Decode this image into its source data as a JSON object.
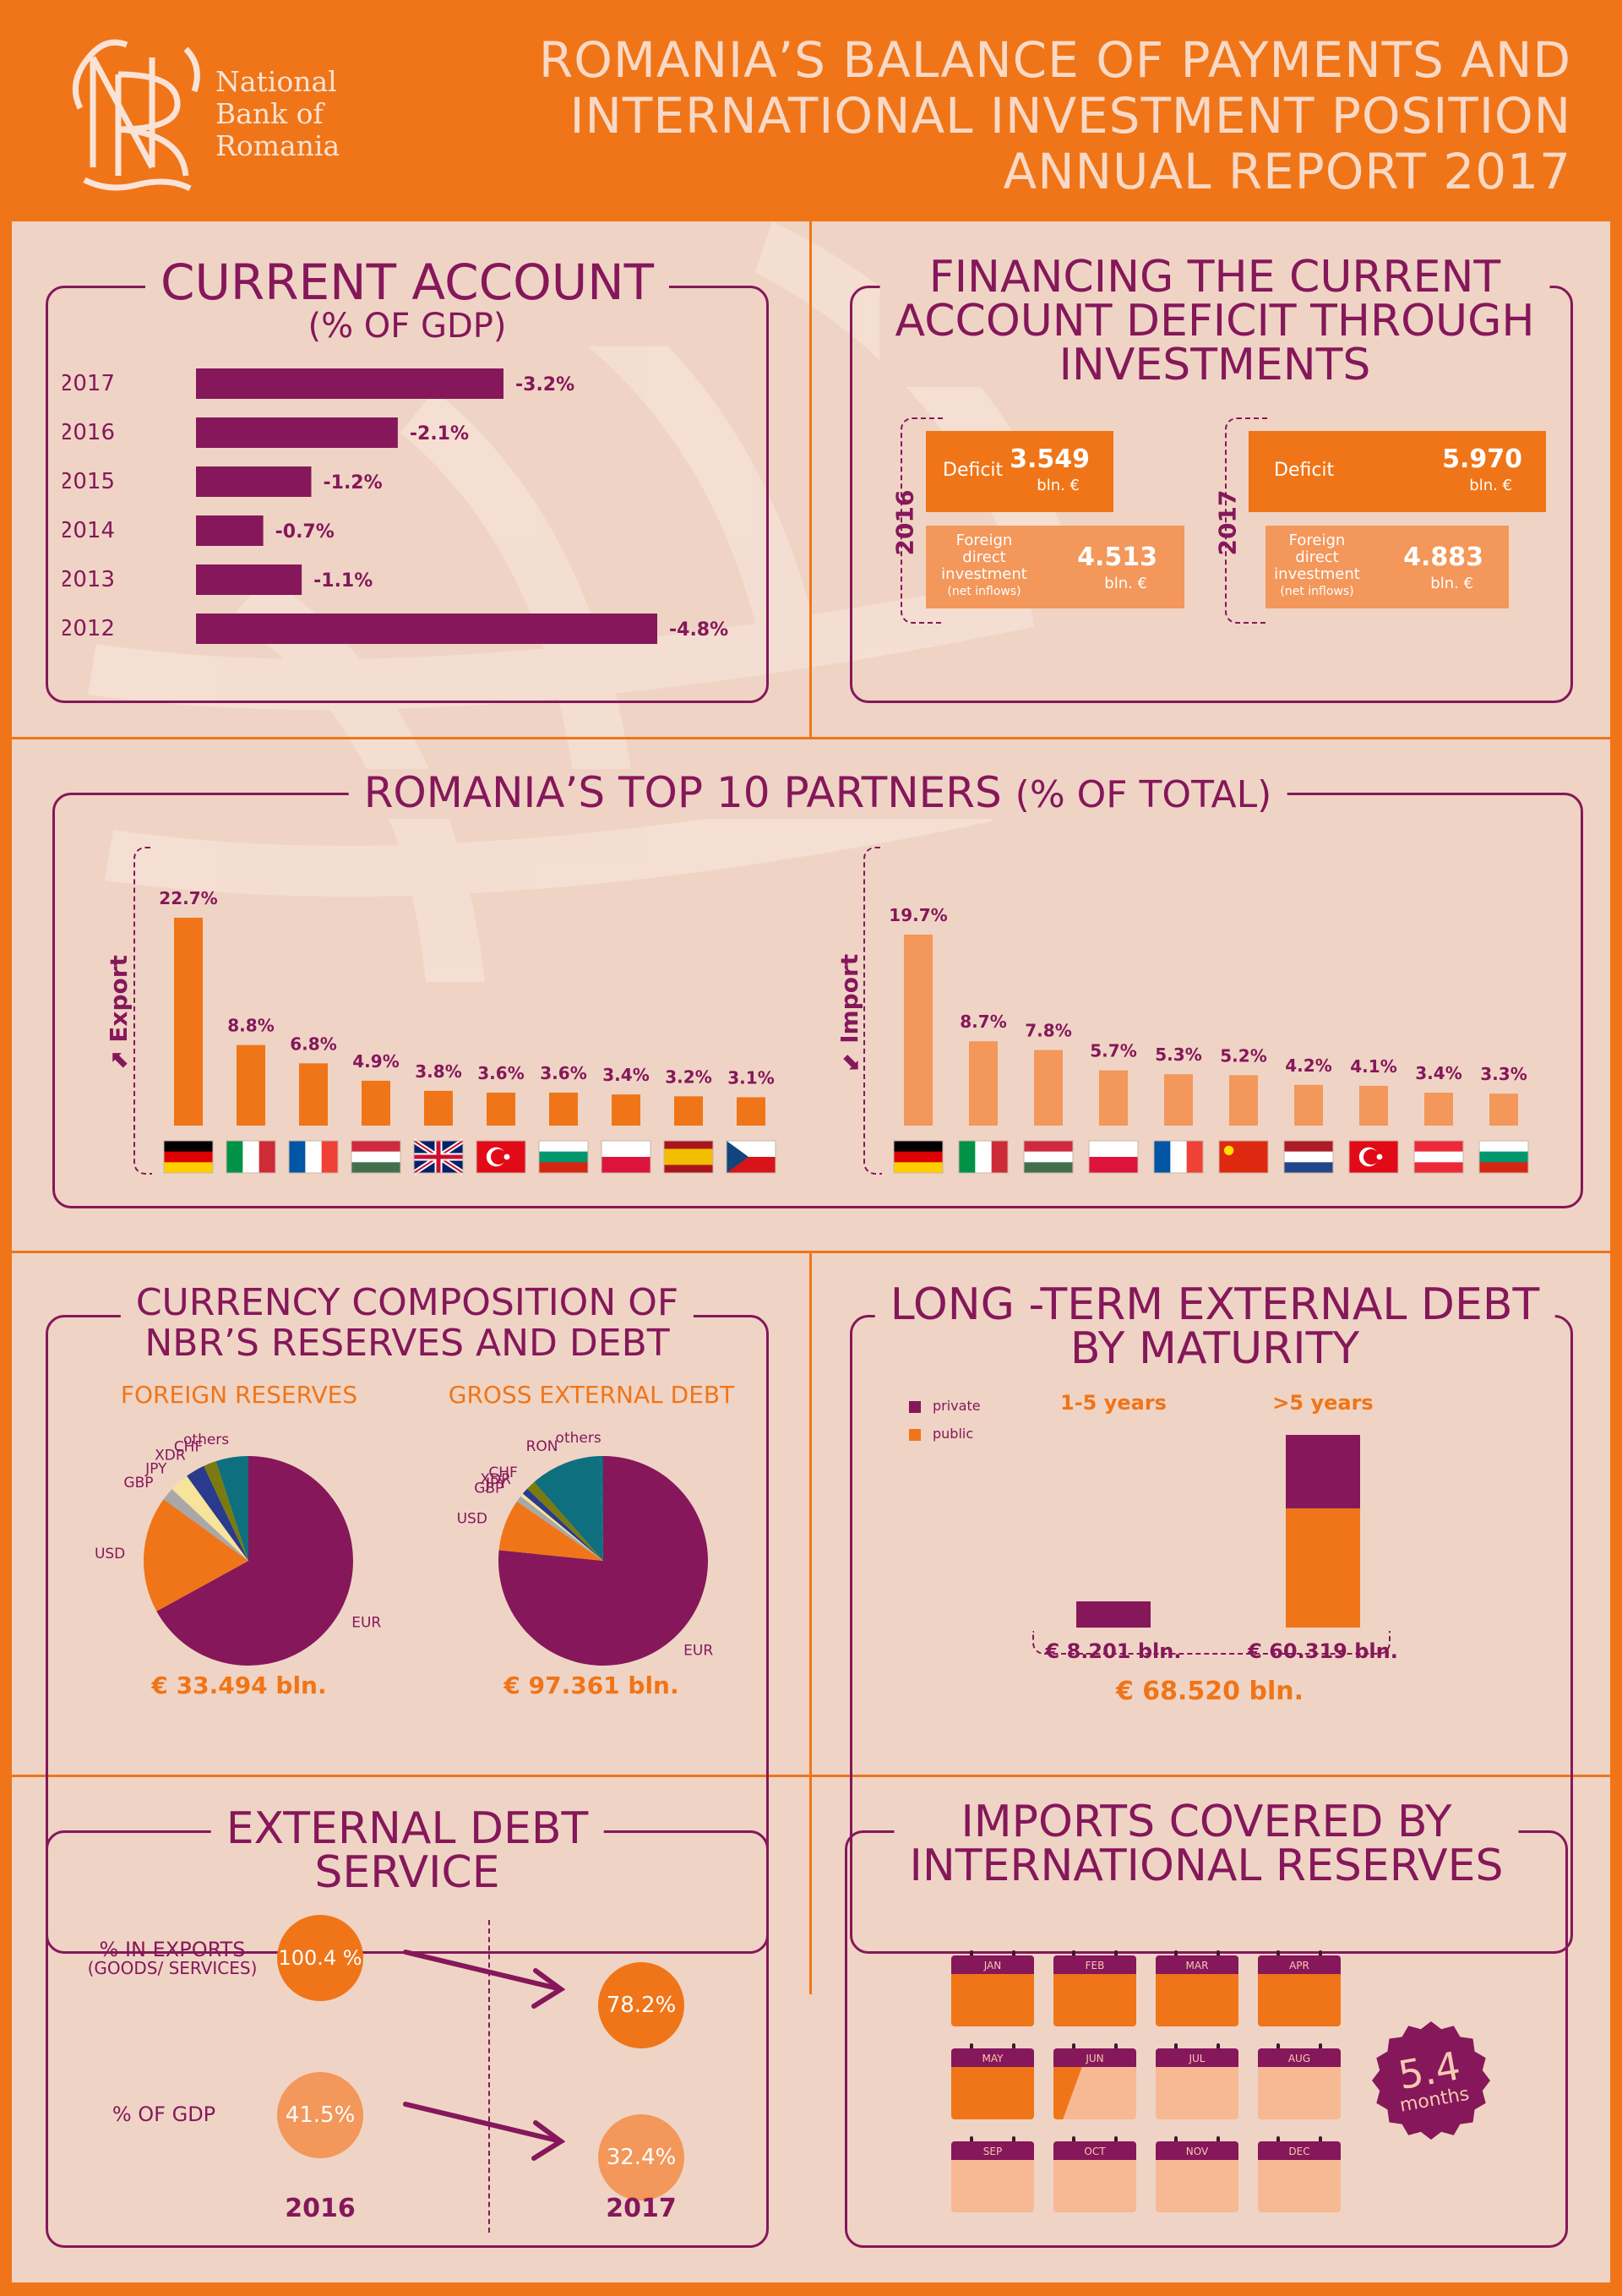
{
  "header": {
    "logo_monogram": "NBR",
    "logo_lines": [
      "National",
      "Bank of",
      "Romania"
    ],
    "title_lines": [
      "ROMANIA’S BALANCE OF PAYMENTS AND",
      "INTERNATIONAL INVESTMENT POSITION",
      "ANNUAL REPORT 2017"
    ]
  },
  "colors": {
    "purple": "#86175A",
    "orange": "#F07518",
    "light_orange": "#F3975A",
    "bg": "#EFD4C5",
    "teal": "#0E6F7E",
    "navy": "#2A3A8C",
    "olive": "#7A7A10",
    "yellow": "#F7E39A",
    "grey": "#A8A8A8"
  },
  "current_account": {
    "title": "CURRENT ACCOUNT",
    "subtitle": "(% OF GDP)",
    "chart_data": {
      "type": "bar",
      "orientation": "horizontal",
      "categories": [
        "2017",
        "2016",
        "2015",
        "2014",
        "2013",
        "2012"
      ],
      "values": [
        -3.2,
        -2.1,
        -1.2,
        -0.7,
        -1.1,
        -4.8
      ],
      "labels": [
        "-3.2%",
        "-2.1%",
        "-1.2%",
        "-0.7%",
        "-1.1%",
        "-4.8%"
      ]
    }
  },
  "financing": {
    "title_lines": [
      "FINANCING THE CURRENT",
      "ACCOUNT DEFICIT THROUGH",
      "INVESTMENTS"
    ],
    "years": [
      {
        "year": "2016",
        "deficit_label": "Deficit",
        "deficit_value": "3.549",
        "deficit_unit": "bln. €",
        "fdi_label_lines": [
          "Foreign",
          "direct",
          "investment",
          "(net inflows)"
        ],
        "fdi_value": "4.513",
        "fdi_unit": "bln. €"
      },
      {
        "year": "2017",
        "deficit_label": "Deficit",
        "deficit_value": "5.970",
        "deficit_unit": "bln. €",
        "fdi_label_lines": [
          "Foreign",
          "direct",
          "investment",
          "(net inflows)"
        ],
        "fdi_value": "4.883",
        "fdi_unit": "bln. €"
      }
    ]
  },
  "partners": {
    "title": "ROMANIA’S TOP 10 PARTNERS",
    "title_sub": "(% OF TOTAL)",
    "export_label": "Export",
    "import_label": "Import",
    "chart_data": [
      {
        "type": "bar",
        "name": "Export",
        "categories": [
          "Germany",
          "Italy",
          "France",
          "Hungary",
          "United Kingdom",
          "Turkey",
          "Bulgaria",
          "Poland",
          "Spain",
          "Czech Republic"
        ],
        "values": [
          22.7,
          8.8,
          6.8,
          4.9,
          3.8,
          3.6,
          3.6,
          3.4,
          3.2,
          3.1
        ],
        "labels": [
          "22.7%",
          "8.8%",
          "6.8%",
          "4.9%",
          "3.8%",
          "3.6%",
          "3.6%",
          "3.4%",
          "3.2%",
          "3.1%"
        ]
      },
      {
        "type": "bar",
        "name": "Import",
        "categories": [
          "Germany",
          "Italy",
          "Hungary",
          "Poland",
          "France",
          "China",
          "Netherlands",
          "Turkey",
          "Austria",
          "Bulgaria"
        ],
        "values": [
          19.7,
          8.7,
          7.8,
          5.7,
          5.3,
          5.2,
          4.2,
          4.1,
          3.4,
          3.3
        ],
        "labels": [
          "19.7%",
          "8.7%",
          "7.8%",
          "5.7%",
          "5.3%",
          "5.2%",
          "4.2%",
          "4.1%",
          "3.4%",
          "3.3%"
        ]
      }
    ]
  },
  "currency": {
    "title_lines": [
      "CURRENCY COMPOSITION OF",
      "NBR’S RESERVES AND DEBT"
    ],
    "chart_data": [
      {
        "type": "pie",
        "title": "FOREIGN RESERVES",
        "slices": [
          {
            "label": "EUR",
            "value": 67
          },
          {
            "label": "USD",
            "value": 18
          },
          {
            "label": "GBP",
            "value": 2
          },
          {
            "label": "JPY",
            "value": 3
          },
          {
            "label": "XDR",
            "value": 3
          },
          {
            "label": "CHF",
            "value": 2
          },
          {
            "label": "others",
            "value": 5
          }
        ],
        "total": "€ 33.494 bln."
      },
      {
        "type": "pie",
        "title": "GROSS EXTERNAL DEBT",
        "slices": [
          {
            "label": "EUR",
            "value": 77
          },
          {
            "label": "USD",
            "value": 8
          },
          {
            "label": "GBP",
            "value": 1
          },
          {
            "label": "JPY",
            "value": 0.5
          },
          {
            "label": "XDR",
            "value": 1
          },
          {
            "label": "CHF",
            "value": 1.5
          },
          {
            "label": "RON",
            "value": 11
          },
          {
            "label": "others",
            "value": 0.5
          }
        ],
        "total": "€ 97.361 bln."
      }
    ]
  },
  "long_term": {
    "title_lines": [
      "LONG -TERM EXTERNAL DEBT",
      "BY MATURITY"
    ],
    "legend": [
      "private",
      "public"
    ],
    "chart_data": {
      "type": "bar",
      "stacked": true,
      "categories": [
        "1-5 years",
        ">5 years"
      ],
      "series": [
        {
          "name": "private",
          "values": [
            8.201,
            23
          ]
        },
        {
          "name": "public",
          "values": [
            0,
            37.319
          ]
        }
      ],
      "totals": [
        "€ 8.201 bln.",
        "€ 60.319 bln."
      ],
      "grand_total": "€ 68.520 bln."
    }
  },
  "debt_service": {
    "title_lines": [
      "EXTERNAL DEBT",
      "SERVICE"
    ],
    "rows": [
      {
        "label_lines": [
          "% IN EXPORTS",
          "(GOODS/ SERVICES)"
        ],
        "v2016": "100.4 %",
        "v2017": "78.2%"
      },
      {
        "label_lines": [
          "% OF GDP"
        ],
        "v2016": "41.5%",
        "v2017": "32.4%"
      }
    ],
    "years": [
      "2016",
      "2017"
    ]
  },
  "imports_covered": {
    "title_lines": [
      "IMPORTS COVERED BY",
      "INTERNATIONAL RESERVES"
    ],
    "months": [
      "JAN",
      "FEB",
      "MAR",
      "APR",
      "MAY",
      "JUN",
      "JUL",
      "AUG",
      "SEP",
      "OCT",
      "NOV",
      "DEC"
    ],
    "months_covered": 5.4,
    "badge_value": "5.4",
    "badge_unit": "months"
  }
}
